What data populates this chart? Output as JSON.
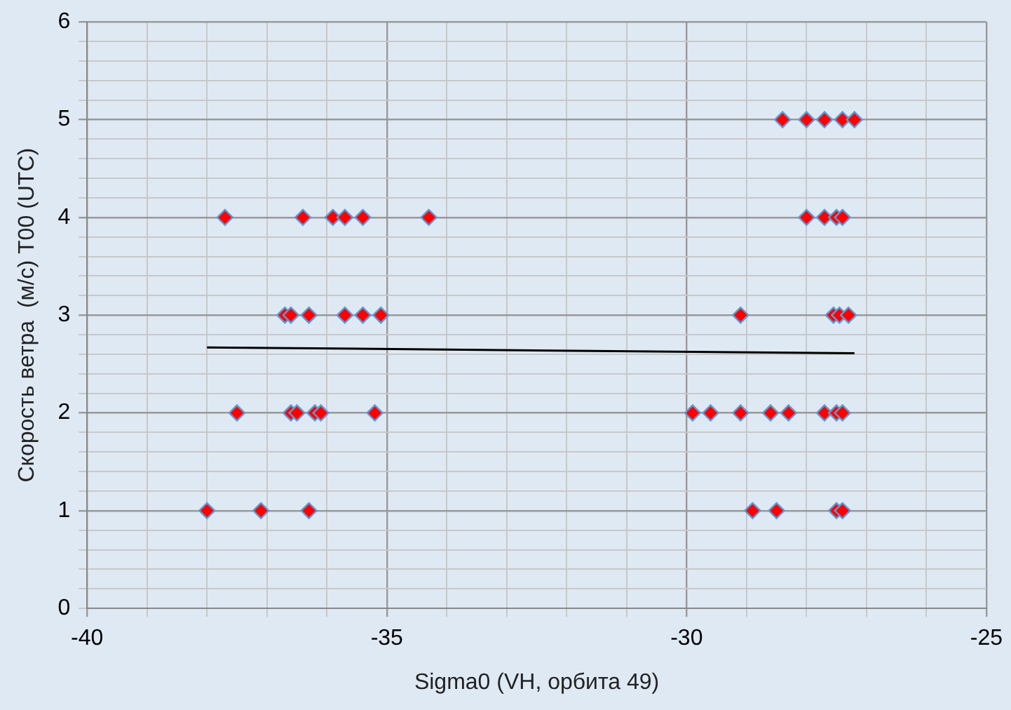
{
  "chart_data": {
    "type": "scatter",
    "xlabel": "Sigma0 (VH, орбита 49)",
    "ylabel": "Скорость ветра  (м/с) T00 (UTC)",
    "xlim": [
      -40,
      -25
    ],
    "ylim": [
      0,
      6
    ],
    "xticks": [
      -40,
      {
        "value": -39,
        "label": null
      },
      {
        "value": -38,
        "label": null
      },
      {
        "value": -37,
        "label": null
      },
      {
        "value": -36,
        "label": null
      },
      -35,
      {
        "value": -34,
        "label": null
      },
      {
        "value": -33,
        "label": null
      },
      {
        "value": -32,
        "label": null
      },
      {
        "value": -31,
        "label": null
      },
      -30,
      {
        "value": -29,
        "label": null
      },
      {
        "value": -28,
        "label": null
      },
      {
        "value": -27,
        "label": null
      },
      {
        "value": -26,
        "label": null
      },
      -25
    ],
    "yticks": [
      0,
      {
        "value": 0.2,
        "label": null
      },
      {
        "value": 0.4,
        "label": null
      },
      {
        "value": 0.6,
        "label": null
      },
      {
        "value": 0.8,
        "label": null
      },
      1,
      {
        "value": 1.2,
        "label": null
      },
      {
        "value": 1.4,
        "label": null
      },
      {
        "value": 1.6,
        "label": null
      },
      {
        "value": 1.8,
        "label": null
      },
      2,
      {
        "value": 2.2,
        "label": null
      },
      {
        "value": 2.4,
        "label": null
      },
      {
        "value": 2.6,
        "label": null
      },
      {
        "value": 2.8,
        "label": null
      },
      3,
      {
        "value": 3.2,
        "label": null
      },
      {
        "value": 3.4,
        "label": null
      },
      {
        "value": 3.6,
        "label": null
      },
      {
        "value": 3.8,
        "label": null
      },
      4,
      {
        "value": 4.2,
        "label": null
      },
      {
        "value": 4.4,
        "label": null
      },
      {
        "value": 4.6,
        "label": null
      },
      {
        "value": 4.8,
        "label": null
      },
      5,
      {
        "value": 5.2,
        "label": null
      },
      {
        "value": 5.4,
        "label": null
      },
      {
        "value": 5.6,
        "label": null
      },
      {
        "value": 5.8,
        "label": null
      },
      6
    ],
    "grid": true,
    "legend": false,
    "marker": "diamond",
    "series": [
      {
        "color": "#ff0000",
        "x": [
          -28.4,
          -28.0,
          -27.7,
          -27.4,
          -27.2,
          -37.7,
          -36.4,
          -35.9,
          -35.7,
          -35.4,
          -34.3,
          -28.0,
          -27.7,
          -27.5,
          -27.4,
          -36.7,
          -36.6,
          -36.3,
          -35.7,
          -35.4,
          -35.1,
          -29.1,
          -27.55,
          -27.45,
          -27.3,
          -37.5,
          -36.6,
          -36.5,
          -36.2,
          -36.1,
          -35.2,
          -29.9,
          -29.6,
          -29.1,
          -28.6,
          -28.3,
          -27.7,
          -27.5,
          -27.4,
          -38.0,
          -37.1,
          -36.3,
          -28.9,
          -28.5,
          -27.5,
          -27.4
        ],
        "values": [
          5,
          5,
          5,
          5,
          5,
          4,
          4,
          4,
          4,
          4,
          4,
          4,
          4,
          4,
          4,
          3,
          3,
          3,
          3,
          3,
          3,
          3,
          3,
          3,
          3,
          2,
          2,
          2,
          2,
          2,
          2,
          2,
          2,
          2,
          2,
          2,
          2,
          2,
          2,
          1,
          1,
          1,
          1,
          1,
          1,
          1
        ]
      },
      {
        "type": "line",
        "color": "#000000",
        "x": [
          -38.0,
          -27.2
        ],
        "values": [
          2.67,
          2.61
        ],
        "marker": "none"
      }
    ]
  }
}
